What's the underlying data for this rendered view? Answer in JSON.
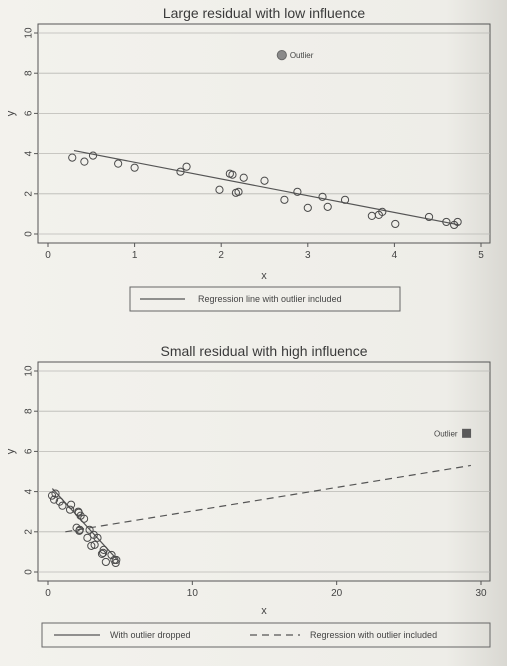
{
  "chart_data": [
    {
      "type": "scatter",
      "title": "Large residual with low influence",
      "xlabel": "x",
      "ylabel": "y",
      "xlim": [
        0,
        5
      ],
      "ylim": [
        0,
        10
      ],
      "xticks": [
        "0",
        "1",
        "2",
        "3",
        "4",
        "5"
      ],
      "yticks": [
        "0",
        "2",
        "4",
        "6",
        "8",
        "10"
      ],
      "grid": true,
      "series": [
        {
          "name": "",
          "x": [
            0.28,
            0.42,
            0.52,
            0.81,
            1.0,
            1.53,
            1.6,
            1.98,
            2.1,
            2.13,
            2.17,
            2.2,
            2.26,
            2.5,
            2.73,
            2.88,
            3.0,
            3.17,
            3.23,
            3.43,
            3.74,
            3.82,
            3.86,
            4.01,
            4.4,
            4.6,
            4.69,
            4.73
          ],
          "y": [
            3.8,
            3.6,
            3.9,
            3.5,
            3.3,
            3.1,
            3.35,
            2.2,
            3.0,
            2.95,
            2.05,
            2.1,
            2.8,
            2.65,
            1.7,
            2.1,
            1.3,
            1.85,
            1.35,
            1.7,
            0.9,
            0.95,
            1.1,
            0.5,
            0.85,
            0.6,
            0.45,
            0.6
          ]
        }
      ],
      "outlier": {
        "label": "Outlier",
        "x": 2.7,
        "y": 8.9
      },
      "lines": [
        {
          "name": "Regression line with outlier included",
          "x": [
            0.3,
            4.75
          ],
          "y": [
            4.15,
            0.45
          ],
          "style": "solid"
        }
      ],
      "legend_position": "bottom"
    },
    {
      "type": "scatter",
      "title": "Small residual with high influence",
      "xlabel": "x",
      "ylabel": "y",
      "xlim": [
        0,
        30
      ],
      "ylim": [
        0,
        10
      ],
      "xticks": [
        "0",
        "10",
        "20",
        "30"
      ],
      "yticks": [
        "0",
        "2",
        "4",
        "6",
        "8",
        "10"
      ],
      "grid": true,
      "series": [
        {
          "name": "",
          "x": [
            0.28,
            0.42,
            0.52,
            0.81,
            1.0,
            1.53,
            1.6,
            1.98,
            2.1,
            2.13,
            2.17,
            2.2,
            2.26,
            2.5,
            2.73,
            2.88,
            3.0,
            3.17,
            3.23,
            3.43,
            3.74,
            3.82,
            3.86,
            4.01,
            4.4,
            4.6,
            4.69,
            4.73
          ],
          "y": [
            3.8,
            3.6,
            3.9,
            3.5,
            3.3,
            3.1,
            3.35,
            2.2,
            3.0,
            2.95,
            2.05,
            2.1,
            2.8,
            2.65,
            1.7,
            2.1,
            1.3,
            1.85,
            1.35,
            1.7,
            0.9,
            0.95,
            1.1,
            0.5,
            0.85,
            0.6,
            0.45,
            0.6
          ]
        }
      ],
      "outlier": {
        "label": "Outlier",
        "x": 29,
        "y": 6.9
      },
      "lines": [
        {
          "name": "With outlier dropped",
          "x": [
            0.3,
            4.75
          ],
          "y": [
            4.15,
            0.65
          ],
          "style": "solid"
        },
        {
          "name": "Regression with outlier included",
          "x": [
            1.2,
            29.3
          ],
          "y": [
            2.0,
            5.3
          ],
          "style": "dashed"
        }
      ],
      "legend_position": "bottom"
    }
  ]
}
